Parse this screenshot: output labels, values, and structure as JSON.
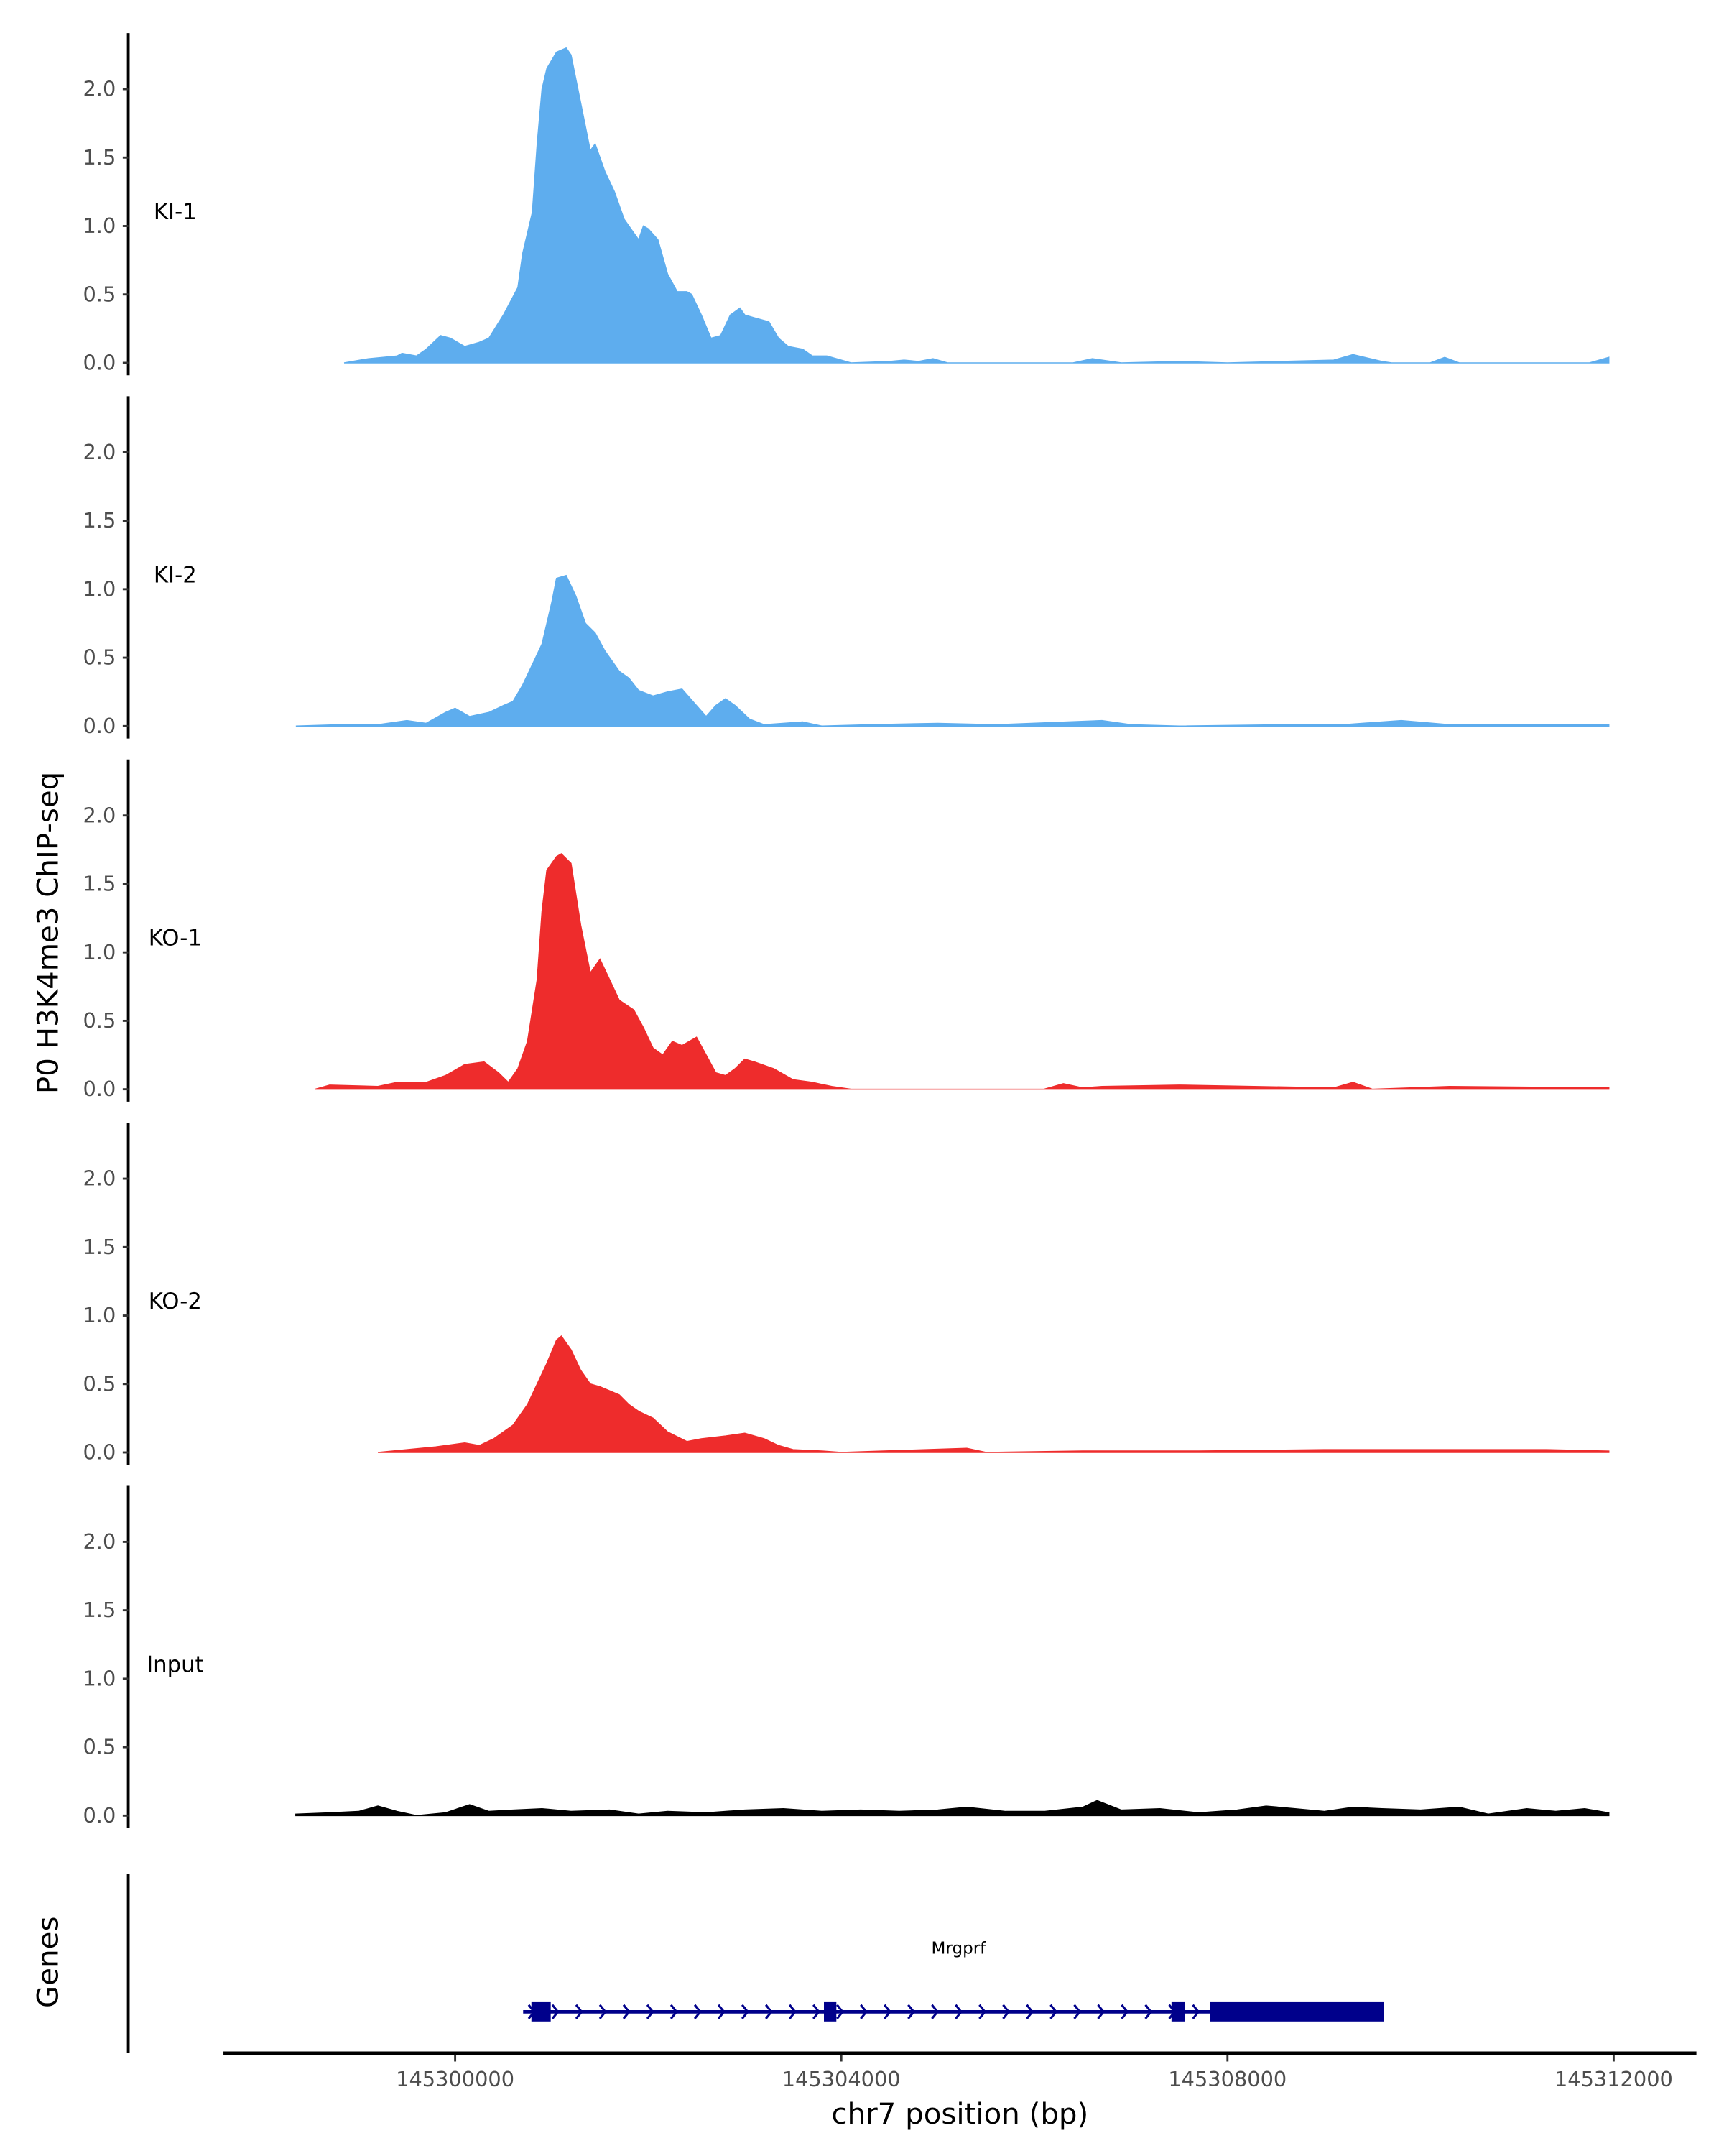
{
  "chart_data": {
    "type": "area",
    "ylabel": "P0 H3K4me3 ChIP-seq",
    "xlabel": "chr7 position (bp)",
    "gene_panel_label": "Genes",
    "xlim": [
      145297650,
      145312000
    ],
    "x_ticks": [
      145300000,
      145304000,
      145308000,
      145312000
    ],
    "x_tick_labels": [
      "145300000",
      "145304000",
      "145308000",
      "145312000"
    ],
    "ylim": [
      0,
      2.35
    ],
    "y_ticks": [
      0,
      0.5,
      1,
      1.5,
      2
    ],
    "y_tick_labels": [
      "0.0",
      "0.5",
      "1.0",
      "1.5",
      "2.0"
    ],
    "x_offset_base": 145300000,
    "series": [
      {
        "name": "KI-1",
        "color": "#5eadee",
        "points": [
          [
            -1150,
            0
          ],
          [
            -900,
            0.03
          ],
          [
            -600,
            0.05
          ],
          [
            -550,
            0.07
          ],
          [
            -400,
            0.05
          ],
          [
            -300,
            0.1
          ],
          [
            -150,
            0.2
          ],
          [
            -50,
            0.18
          ],
          [
            100,
            0.12
          ],
          [
            250,
            0.15
          ],
          [
            350,
            0.18
          ],
          [
            500,
            0.35
          ],
          [
            650,
            0.55
          ],
          [
            700,
            0.8
          ],
          [
            800,
            1.1
          ],
          [
            850,
            1.6
          ],
          [
            900,
            2.0
          ],
          [
            950,
            2.15
          ],
          [
            1050,
            2.27
          ],
          [
            1150,
            2.3
          ],
          [
            1200,
            2.25
          ],
          [
            1300,
            1.9
          ],
          [
            1400,
            1.55
          ],
          [
            1450,
            1.6
          ],
          [
            1550,
            1.4
          ],
          [
            1650,
            1.25
          ],
          [
            1750,
            1.05
          ],
          [
            1850,
            0.95
          ],
          [
            1900,
            0.9
          ],
          [
            1950,
            1.0
          ],
          [
            2000,
            0.98
          ],
          [
            2100,
            0.9
          ],
          [
            2200,
            0.65
          ],
          [
            2300,
            0.52
          ],
          [
            2400,
            0.52
          ],
          [
            2450,
            0.5
          ],
          [
            2550,
            0.35
          ],
          [
            2650,
            0.18
          ],
          [
            2750,
            0.2
          ],
          [
            2850,
            0.35
          ],
          [
            2950,
            0.4
          ],
          [
            3000,
            0.35
          ],
          [
            3100,
            0.33
          ],
          [
            3250,
            0.3
          ],
          [
            3350,
            0.18
          ],
          [
            3450,
            0.12
          ],
          [
            3600,
            0.1
          ],
          [
            3700,
            0.05
          ],
          [
            3850,
            0.05
          ],
          [
            4000,
            0.02
          ],
          [
            4100,
            0
          ],
          [
            4500,
            0.01
          ],
          [
            4650,
            0.02
          ],
          [
            4800,
            0.01
          ],
          [
            4950,
            0.03
          ],
          [
            5100,
            0
          ],
          [
            6400,
            0
          ],
          [
            6600,
            0.03
          ],
          [
            6900,
            0
          ],
          [
            7500,
            0.01
          ],
          [
            8000,
            0
          ],
          [
            9100,
            0.02
          ],
          [
            9300,
            0.06
          ],
          [
            9600,
            0.01
          ],
          [
            9700,
            0
          ],
          [
            10100,
            0
          ],
          [
            10250,
            0.04
          ],
          [
            10400,
            0
          ],
          [
            11750,
            0
          ],
          [
            11950,
            0.04
          ]
        ]
      },
      {
        "name": "KI-2",
        "color": "#5eadee",
        "points": [
          [
            -1650,
            0
          ],
          [
            -1200,
            0.01
          ],
          [
            -800,
            0.01
          ],
          [
            -500,
            0.04
          ],
          [
            -300,
            0.02
          ],
          [
            -100,
            0.1
          ],
          [
            0,
            0.13
          ],
          [
            150,
            0.07
          ],
          [
            350,
            0.1
          ],
          [
            500,
            0.15
          ],
          [
            600,
            0.18
          ],
          [
            700,
            0.3
          ],
          [
            800,
            0.45
          ],
          [
            900,
            0.6
          ],
          [
            950,
            0.75
          ],
          [
            1000,
            0.9
          ],
          [
            1050,
            1.08
          ],
          [
            1150,
            1.1
          ],
          [
            1250,
            0.95
          ],
          [
            1350,
            0.75
          ],
          [
            1450,
            0.68
          ],
          [
            1550,
            0.55
          ],
          [
            1700,
            0.4
          ],
          [
            1800,
            0.35
          ],
          [
            1900,
            0.26
          ],
          [
            2050,
            0.22
          ],
          [
            2200,
            0.25
          ],
          [
            2350,
            0.27
          ],
          [
            2500,
            0.15
          ],
          [
            2600,
            0.07
          ],
          [
            2700,
            0.15
          ],
          [
            2800,
            0.2
          ],
          [
            2900,
            0.15
          ],
          [
            3050,
            0.05
          ],
          [
            3200,
            0.01
          ],
          [
            3600,
            0.03
          ],
          [
            3800,
            0
          ],
          [
            4300,
            0.01
          ],
          [
            5000,
            0.02
          ],
          [
            5600,
            0.01
          ],
          [
            6700,
            0.04
          ],
          [
            7000,
            0.01
          ],
          [
            7500,
            0
          ],
          [
            8600,
            0.01
          ],
          [
            9200,
            0.01
          ],
          [
            9800,
            0.04
          ],
          [
            10300,
            0.01
          ],
          [
            11100,
            0.01
          ],
          [
            11950,
            0.01
          ]
        ]
      },
      {
        "name": "KO-1",
        "color": "#ee2c2c",
        "points": [
          [
            -1450,
            0
          ],
          [
            -1300,
            0.03
          ],
          [
            -800,
            0.02
          ],
          [
            -600,
            0.05
          ],
          [
            -300,
            0.05
          ],
          [
            -100,
            0.1
          ],
          [
            100,
            0.18
          ],
          [
            300,
            0.2
          ],
          [
            450,
            0.12
          ],
          [
            550,
            0.05
          ],
          [
            650,
            0.15
          ],
          [
            750,
            0.35
          ],
          [
            850,
            0.8
          ],
          [
            900,
            1.3
          ],
          [
            950,
            1.6
          ],
          [
            1050,
            1.7
          ],
          [
            1100,
            1.72
          ],
          [
            1200,
            1.65
          ],
          [
            1300,
            1.2
          ],
          [
            1400,
            0.85
          ],
          [
            1500,
            0.95
          ],
          [
            1600,
            0.8
          ],
          [
            1700,
            0.65
          ],
          [
            1850,
            0.58
          ],
          [
            1950,
            0.45
          ],
          [
            2050,
            0.3
          ],
          [
            2150,
            0.25
          ],
          [
            2250,
            0.35
          ],
          [
            2350,
            0.32
          ],
          [
            2500,
            0.38
          ],
          [
            2600,
            0.25
          ],
          [
            2700,
            0.12
          ],
          [
            2800,
            0.1
          ],
          [
            2900,
            0.15
          ],
          [
            3000,
            0.22
          ],
          [
            3100,
            0.2
          ],
          [
            3300,
            0.15
          ],
          [
            3500,
            0.07
          ],
          [
            3700,
            0.05
          ],
          [
            3900,
            0.02
          ],
          [
            4100,
            0
          ],
          [
            6100,
            0
          ],
          [
            6300,
            0.04
          ],
          [
            6500,
            0.01
          ],
          [
            6700,
            0.02
          ],
          [
            7500,
            0.03
          ],
          [
            9100,
            0.01
          ],
          [
            9300,
            0.05
          ],
          [
            9500,
            0
          ],
          [
            10300,
            0.02
          ],
          [
            11950,
            0.01
          ]
        ]
      },
      {
        "name": "KO-2",
        "color": "#ee2c2c",
        "points": [
          [
            -800,
            0
          ],
          [
            -500,
            0.02
          ],
          [
            -200,
            0.04
          ],
          [
            100,
            0.07
          ],
          [
            250,
            0.05
          ],
          [
            400,
            0.1
          ],
          [
            600,
            0.2
          ],
          [
            750,
            0.35
          ],
          [
            850,
            0.5
          ],
          [
            950,
            0.65
          ],
          [
            1050,
            0.82
          ],
          [
            1100,
            0.85
          ],
          [
            1200,
            0.75
          ],
          [
            1300,
            0.6
          ],
          [
            1400,
            0.5
          ],
          [
            1500,
            0.48
          ],
          [
            1700,
            0.42
          ],
          [
            1800,
            0.35
          ],
          [
            1900,
            0.3
          ],
          [
            2050,
            0.25
          ],
          [
            2200,
            0.15
          ],
          [
            2400,
            0.08
          ],
          [
            2550,
            0.1
          ],
          [
            2800,
            0.12
          ],
          [
            3000,
            0.14
          ],
          [
            3200,
            0.1
          ],
          [
            3350,
            0.05
          ],
          [
            3500,
            0.02
          ],
          [
            3800,
            0.01
          ],
          [
            4000,
            0
          ],
          [
            5300,
            0.03
          ],
          [
            5500,
            0
          ],
          [
            6500,
            0.01
          ],
          [
            7700,
            0.01
          ],
          [
            9000,
            0.02
          ],
          [
            10500,
            0.02
          ],
          [
            11300,
            0.02
          ],
          [
            11950,
            0.01
          ]
        ]
      },
      {
        "name": "Input",
        "color": "#000000",
        "points": [
          [
            -1650,
            0.01
          ],
          [
            -1300,
            0.02
          ],
          [
            -1000,
            0.03
          ],
          [
            -800,
            0.07
          ],
          [
            -600,
            0.03
          ],
          [
            -400,
            0
          ],
          [
            -100,
            0.02
          ],
          [
            150,
            0.08
          ],
          [
            350,
            0.03
          ],
          [
            600,
            0.04
          ],
          [
            900,
            0.05
          ],
          [
            1200,
            0.03
          ],
          [
            1600,
            0.04
          ],
          [
            1900,
            0.01
          ],
          [
            2200,
            0.03
          ],
          [
            2600,
            0.02
          ],
          [
            3000,
            0.04
          ],
          [
            3400,
            0.05
          ],
          [
            3800,
            0.03
          ],
          [
            4200,
            0.04
          ],
          [
            4600,
            0.03
          ],
          [
            5000,
            0.04
          ],
          [
            5300,
            0.06
          ],
          [
            5700,
            0.03
          ],
          [
            6100,
            0.03
          ],
          [
            6500,
            0.06
          ],
          [
            6650,
            0.11
          ],
          [
            6900,
            0.04
          ],
          [
            7300,
            0.05
          ],
          [
            7700,
            0.02
          ],
          [
            8100,
            0.04
          ],
          [
            8400,
            0.07
          ],
          [
            8700,
            0.05
          ],
          [
            9000,
            0.03
          ],
          [
            9300,
            0.06
          ],
          [
            9600,
            0.05
          ],
          [
            10000,
            0.04
          ],
          [
            10400,
            0.06
          ],
          [
            10700,
            0.01
          ],
          [
            11100,
            0.05
          ],
          [
            11400,
            0.03
          ],
          [
            11700,
            0.05
          ],
          [
            11950,
            0.02
          ]
        ]
      }
    ],
    "gene": {
      "name": "Mrgprf",
      "strand": "+",
      "color": "#00008b",
      "start": 145300790,
      "end": 145309620,
      "exons": [
        [
          145300790,
          145300990
        ],
        [
          145303820,
          145303940
        ],
        [
          145307420,
          145307560
        ],
        [
          145307820,
          145309620
        ]
      ]
    }
  }
}
